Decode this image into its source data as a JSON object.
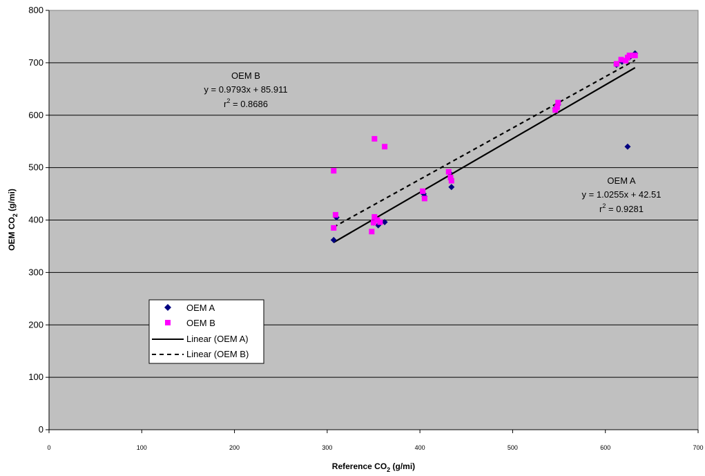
{
  "chart_data": {
    "type": "scatter",
    "xlabel": {
      "main": "Reference CO",
      "sub": "2",
      "unit": " (g/mi)"
    },
    "ylabel": {
      "main": "OEM CO",
      "sub": "2",
      "unit": " (g/mi)"
    },
    "xlim": [
      0,
      700
    ],
    "ylim": [
      0,
      800
    ],
    "x_ticks": [
      0,
      100,
      200,
      300,
      400,
      500,
      600,
      700
    ],
    "y_ticks": [
      0,
      100,
      200,
      300,
      400,
      500,
      600,
      700,
      800
    ],
    "plot_background": "#c0c0c0",
    "grid": "horizontal",
    "series": [
      {
        "name": "OEM A",
        "marker": "diamond",
        "color": "#000080",
        "points": [
          [
            307,
            362
          ],
          [
            310,
            405
          ],
          [
            350,
            395
          ],
          [
            355,
            390
          ],
          [
            362,
            396
          ],
          [
            404,
            450
          ],
          [
            405,
            445
          ],
          [
            432,
            490
          ],
          [
            434,
            463
          ],
          [
            546,
            613
          ],
          [
            549,
            620
          ],
          [
            612,
            696
          ],
          [
            618,
            702
          ],
          [
            624,
            540
          ],
          [
            626,
            710
          ],
          [
            632,
            718
          ]
        ]
      },
      {
        "name": "OEM B",
        "marker": "square",
        "color": "#ff00ff",
        "points": [
          [
            307,
            494
          ],
          [
            307,
            385
          ],
          [
            309,
            410
          ],
          [
            348,
            378
          ],
          [
            350,
            395
          ],
          [
            351,
            555
          ],
          [
            351,
            406
          ],
          [
            354,
            400
          ],
          [
            357,
            396
          ],
          [
            362,
            540
          ],
          [
            403,
            455
          ],
          [
            405,
            441
          ],
          [
            431,
            492
          ],
          [
            433,
            481
          ],
          [
            434,
            475
          ],
          [
            546,
            610
          ],
          [
            548,
            615
          ],
          [
            549,
            624
          ],
          [
            612,
            698
          ],
          [
            617,
            706
          ],
          [
            622,
            704
          ],
          [
            624,
            710
          ],
          [
            626,
            714
          ],
          [
            632,
            714
          ]
        ]
      }
    ],
    "trendlines": [
      {
        "name": "Linear (OEM A)",
        "style": "solid",
        "slope": 1.0255,
        "intercept": 42.51,
        "x_range": [
          307,
          632
        ]
      },
      {
        "name": "Linear (OEM B)",
        "style": "dashed",
        "slope": 0.9793,
        "intercept": 85.911,
        "x_range": [
          307,
          632
        ]
      }
    ],
    "annotations": [
      {
        "title": "OEM B",
        "equation": "y = 0.9793x + 85.911",
        "r2_prefix": "r",
        "r2_sup": "2",
        "r2_value": " = 0.8686"
      },
      {
        "title": "OEM A",
        "equation": "y = 1.0255x + 42.51",
        "r2_prefix": "r",
        "r2_sup": "2",
        "r2_value": " = 0.9281"
      }
    ],
    "legend": {
      "placement": "lower-left inside plot",
      "entries": [
        "OEM A",
        "OEM B",
        "Linear (OEM A)",
        "Linear (OEM B)"
      ]
    }
  }
}
